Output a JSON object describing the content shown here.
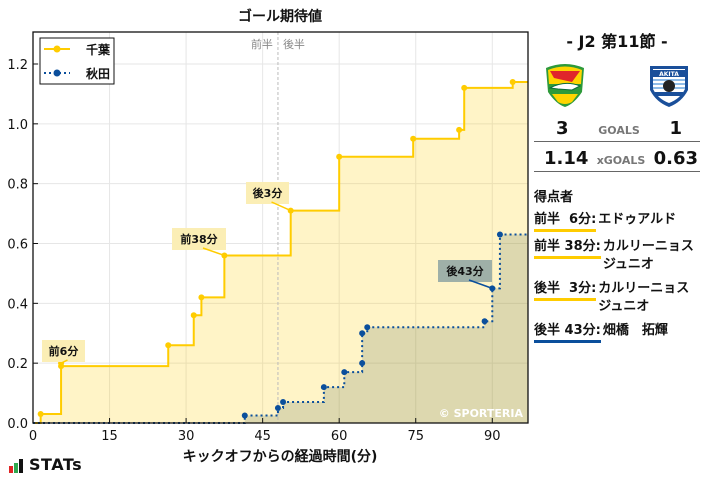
{
  "chart_data": {
    "type": "line",
    "subtype": "step",
    "title": "ゴール期待値",
    "xlabel": "キックオフからの経過時間(分)",
    "ylabel": "",
    "xlim": [
      0,
      97
    ],
    "ylim": [
      0,
      1.3
    ],
    "x_ticks": [
      0,
      15,
      30,
      45,
      60,
      75,
      90
    ],
    "y_ticks": [
      0.0,
      0.2,
      0.4,
      0.6,
      0.8,
      1.0,
      1.2
    ],
    "grid": true,
    "legend_position": "upper left",
    "halftime_line": 48,
    "halftime_labels": [
      "前半",
      "後半"
    ],
    "series": [
      {
        "name": "千葉",
        "color": "#FFCC00",
        "style": "solid",
        "points": [
          [
            0,
            0
          ],
          [
            1.5,
            0.03
          ],
          [
            5.5,
            0.2
          ],
          [
            5.5,
            0.19
          ],
          [
            26.5,
            0.26
          ],
          [
            31.5,
            0.36
          ],
          [
            33,
            0.42
          ],
          [
            37.5,
            0.56
          ],
          [
            50.5,
            0.71
          ],
          [
            60,
            0.89
          ],
          [
            74.5,
            0.95
          ],
          [
            83.5,
            0.98
          ],
          [
            84.5,
            1.12
          ],
          [
            94,
            1.14
          ],
          [
            97,
            1.14
          ]
        ]
      },
      {
        "name": "秋田",
        "color": "#0B4F9C",
        "style": "dotted",
        "points": [
          [
            0,
            0
          ],
          [
            41.5,
            0.025
          ],
          [
            48,
            0.05
          ],
          [
            49,
            0.07
          ],
          [
            57,
            0.12
          ],
          [
            61,
            0.17
          ],
          [
            64.5,
            0.2
          ],
          [
            64.5,
            0.3
          ],
          [
            65.5,
            0.32
          ],
          [
            88.5,
            0.34
          ],
          [
            90,
            0.45
          ],
          [
            91.5,
            0.63
          ],
          [
            97,
            0.63
          ]
        ]
      }
    ],
    "annotations": [
      {
        "text": "前6分",
        "series": "千葉",
        "x": 5.5,
        "y": 0.2
      },
      {
        "text": "前38分",
        "series": "千葉",
        "x": 37.5,
        "y": 0.56
      },
      {
        "text": "後3分",
        "series": "千葉",
        "x": 50.5,
        "y": 0.71
      },
      {
        "text": "後43分",
        "series": "秋田",
        "x": 90,
        "y": 0.45
      }
    ],
    "watermark": "© SPORTERIA"
  },
  "header": {
    "title": "ゴール期待値"
  },
  "match": {
    "round": "- J2 第11節 -",
    "home": {
      "name": "千葉",
      "goals": "3",
      "xg": "1.14"
    },
    "away": {
      "name": "秋田",
      "goals": "1",
      "xg": "0.63"
    },
    "goals_label": "GOALS",
    "xg_label": "xGOALS"
  },
  "scorers": {
    "title": "得点者",
    "items": [
      {
        "time": "前半  6分:",
        "name": "エドゥアルド",
        "team": "home",
        "color": "#FFCC00"
      },
      {
        "time": "前半 38分:",
        "name": "カルリーニョス\nジュニオ",
        "team": "home",
        "color": "#FFCC00"
      },
      {
        "time": "後半  3分:",
        "name": "カルリーニョス\nジュニオ",
        "team": "home",
        "color": "#FFCC00"
      },
      {
        "time": "後半 43分:",
        "name": "畑橋　拓輝",
        "team": "away",
        "color": "#0B4F9C"
      }
    ]
  },
  "branding": {
    "stats_label": "STATs",
    "watermark": "© SPORTERIA"
  }
}
